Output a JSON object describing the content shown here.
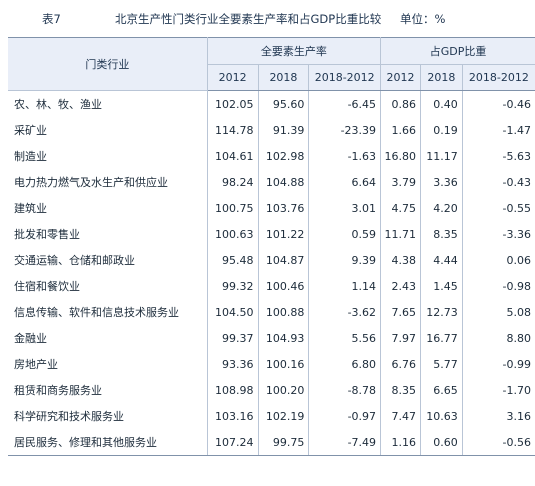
{
  "caption": {
    "table_no": "表7",
    "title": "北京生产性门类行业全要素生产率和占GDP比重比较",
    "unit": "单位：%"
  },
  "header": {
    "industry_label": "门类行业",
    "group_tfp": "全要素生产率",
    "group_gdp": "占GDP比重",
    "col_2012": "2012",
    "col_2018": "2018",
    "col_diff": "2018-2012"
  },
  "rows": [
    {
      "name": "农、林、牧、渔业",
      "tfp2012": "102.05",
      "tfp2018": "95.60",
      "tfpdiff": "-6.45",
      "gdp2012": "0.86",
      "gdp2018": "0.40",
      "gdpdiff": "-0.46"
    },
    {
      "name": "采矿业",
      "tfp2012": "114.78",
      "tfp2018": "91.39",
      "tfpdiff": "-23.39",
      "gdp2012": "1.66",
      "gdp2018": "0.19",
      "gdpdiff": "-1.47"
    },
    {
      "name": "制造业",
      "tfp2012": "104.61",
      "tfp2018": "102.98",
      "tfpdiff": "-1.63",
      "gdp2012": "16.80",
      "gdp2018": "11.17",
      "gdpdiff": "-5.63"
    },
    {
      "name": "电力热力燃气及水生产和供应业",
      "tfp2012": "98.24",
      "tfp2018": "104.88",
      "tfpdiff": "6.64",
      "gdp2012": "3.79",
      "gdp2018": "3.36",
      "gdpdiff": "-0.43"
    },
    {
      "name": "建筑业",
      "tfp2012": "100.75",
      "tfp2018": "103.76",
      "tfpdiff": "3.01",
      "gdp2012": "4.75",
      "gdp2018": "4.20",
      "gdpdiff": "-0.55"
    },
    {
      "name": "批发和零售业",
      "tfp2012": "100.63",
      "tfp2018": "101.22",
      "tfpdiff": "0.59",
      "gdp2012": "11.71",
      "gdp2018": "8.35",
      "gdpdiff": "-3.36"
    },
    {
      "name": "交通运输、仓储和邮政业",
      "tfp2012": "95.48",
      "tfp2018": "104.87",
      "tfpdiff": "9.39",
      "gdp2012": "4.38",
      "gdp2018": "4.44",
      "gdpdiff": "0.06"
    },
    {
      "name": "住宿和餐饮业",
      "tfp2012": "99.32",
      "tfp2018": "100.46",
      "tfpdiff": "1.14",
      "gdp2012": "2.43",
      "gdp2018": "1.45",
      "gdpdiff": "-0.98"
    },
    {
      "name": "信息传输、软件和信息技术服务业",
      "tfp2012": "104.50",
      "tfp2018": "100.88",
      "tfpdiff": "-3.62",
      "gdp2012": "7.65",
      "gdp2018": "12.73",
      "gdpdiff": "5.08"
    },
    {
      "name": "金融业",
      "tfp2012": "99.37",
      "tfp2018": "104.93",
      "tfpdiff": "5.56",
      "gdp2012": "7.97",
      "gdp2018": "16.77",
      "gdpdiff": "8.80"
    },
    {
      "name": "房地产业",
      "tfp2012": "93.36",
      "tfp2018": "100.16",
      "tfpdiff": "6.80",
      "gdp2012": "6.76",
      "gdp2018": "5.77",
      "gdpdiff": "-0.99"
    },
    {
      "name": "租赁和商务服务业",
      "tfp2012": "108.98",
      "tfp2018": "100.20",
      "tfpdiff": "-8.78",
      "gdp2012": "8.35",
      "gdp2018": "6.65",
      "gdpdiff": "-1.70"
    },
    {
      "name": "科学研究和技术服务业",
      "tfp2012": "103.16",
      "tfp2018": "102.19",
      "tfpdiff": "-0.97",
      "gdp2012": "7.47",
      "gdp2018": "10.63",
      "gdpdiff": "3.16"
    },
    {
      "name": "居民服务、修理和其他服务业",
      "tfp2012": "107.24",
      "tfp2018": "99.75",
      "tfpdiff": "-7.49",
      "gdp2012": "1.16",
      "gdp2018": "0.60",
      "gdpdiff": "-0.56"
    }
  ]
}
